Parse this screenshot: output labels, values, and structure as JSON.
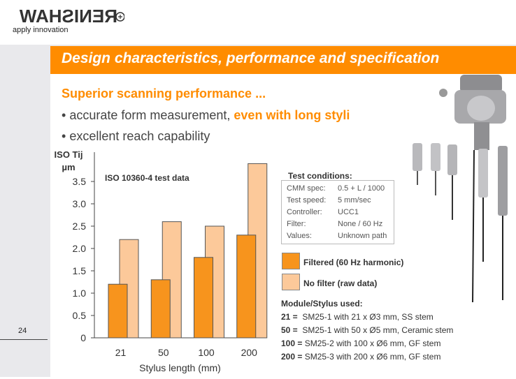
{
  "header": {
    "logo_text": "RENISHAW",
    "tagline": "apply innovation",
    "title": "Design characteristics, performance and specification"
  },
  "intro": {
    "heading": "Superior scanning performance ...",
    "bullets": [
      {
        "text": "accurate form measurement, ",
        "accent": "even with long styli"
      },
      {
        "text": "excellent reach capability",
        "accent": ""
      }
    ]
  },
  "chart_data": {
    "type": "bar",
    "title": "ISO 10360-4 test data",
    "ylabel": "ISO Tij µm",
    "xlabel": "Stylus length (mm)",
    "categories": [
      "21",
      "50",
      "100",
      "200"
    ],
    "ylim": [
      0,
      4
    ],
    "yticks": [
      "0",
      "0.5",
      "1.0",
      "1.5",
      "2.0",
      "2.5",
      "3.0",
      "3.5"
    ],
    "series": [
      {
        "name": "Filtered (60 Hz harmonic)",
        "values": [
          1.2,
          1.3,
          1.8,
          2.3
        ],
        "color": "#f7941d"
      },
      {
        "name": "No filter (raw data)",
        "values": [
          2.2,
          2.6,
          2.5,
          3.9
        ],
        "color": "#fcc99a"
      }
    ]
  },
  "test_conditions": {
    "title": "Test conditions:",
    "rows": [
      {
        "label": "CMM spec:",
        "value": "0.5 + L / 1000"
      },
      {
        "label": "Test speed:",
        "value": "5 mm/sec"
      },
      {
        "label": "Controller:",
        "value": "UCC1"
      },
      {
        "label": "Filter:",
        "value": "None / 60 Hz"
      },
      {
        "label": "Values:",
        "value": "Unknown path"
      }
    ]
  },
  "legend": {
    "filtered": "Filtered (60 Hz harmonic)",
    "raw": "No filter (raw data)"
  },
  "module": {
    "title": "Module/Stylus used:",
    "rows": [
      {
        "key": "21 =",
        "text": "SM25-1 with 21 x Ø3 mm, SS stem"
      },
      {
        "key": "50 =",
        "text": "SM25-1 with 50 x Ø5 mm, Ceramic stem"
      },
      {
        "key": "100 =",
        "text": "SM25-2 with 100 x Ø6 mm, GF stem"
      },
      {
        "key": "200 =",
        "text": "SM25-3 with 200 x Ø6 mm, GF stem"
      }
    ]
  },
  "page_number": "24",
  "colors": {
    "accent": "#ff8c00",
    "filtered": "#f7941d",
    "raw": "#fcc99a"
  }
}
